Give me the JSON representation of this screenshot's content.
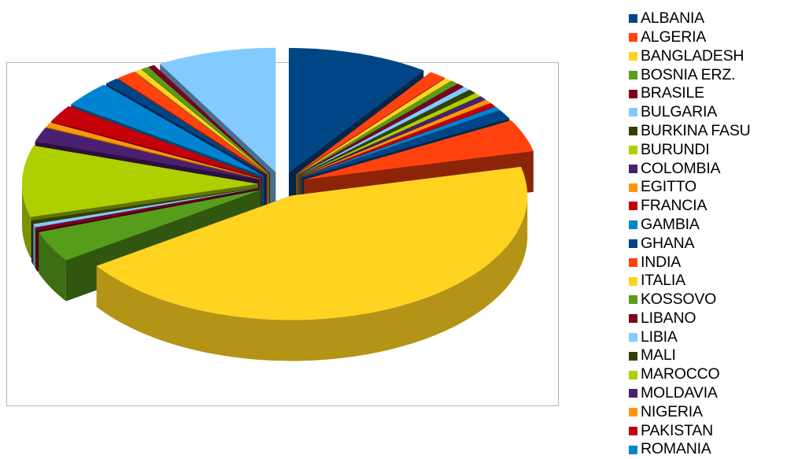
{
  "chart_data": {
    "type": "pie",
    "style": "3d-exploded",
    "title": "",
    "legend_position": "right",
    "slices": [
      {
        "label": "ALBANIA",
        "value": 11.5,
        "color": "#004586"
      },
      {
        "label": "ALGERIA",
        "value": 1.4,
        "color": "#ff420e"
      },
      {
        "label": "BANGLADESH",
        "value": 0.6,
        "color": "#ffd320"
      },
      {
        "label": "BOSNIA ERZ.",
        "value": 0.6,
        "color": "#579d1c"
      },
      {
        "label": "BRASILE",
        "value": 0.6,
        "color": "#7e0021"
      },
      {
        "label": "BULGARIA",
        "value": 0.6,
        "color": "#83caff"
      },
      {
        "label": "BURKINA FASU",
        "value": 0.6,
        "color": "#314004"
      },
      {
        "label": "BURUNDI",
        "value": 0.6,
        "color": "#aecf00"
      },
      {
        "label": "COLOMBIA",
        "value": 0.6,
        "color": "#4b1f6f"
      },
      {
        "label": "EGITTO",
        "value": 0.6,
        "color": "#ff950e"
      },
      {
        "label": "FRANCIA",
        "value": 0.6,
        "color": "#c5000b"
      },
      {
        "label": "GAMBIA",
        "value": 0.6,
        "color": "#0084d1"
      },
      {
        "label": "GHANA",
        "value": 1.4,
        "color": "#004586"
      },
      {
        "label": "INDIA",
        "value": 5.0,
        "color": "#ff420e"
      },
      {
        "label": "ITALIA",
        "value": 52.5,
        "color": "#ffd320"
      },
      {
        "label": "KOSSOVO",
        "value": 4.8,
        "color": "#579d1c"
      },
      {
        "label": "LIBANO",
        "value": 0.5,
        "color": "#7e0021"
      },
      {
        "label": "LIBIA",
        "value": 0.5,
        "color": "#83caff"
      },
      {
        "label": "MALI",
        "value": 0.5,
        "color": "#314004"
      },
      {
        "label": "MAROCCO",
        "value": 11.0,
        "color": "#aecf00"
      },
      {
        "label": "MOLDAVIA",
        "value": 2.2,
        "color": "#4b1f6f"
      },
      {
        "label": "NIGERIA",
        "value": 0.8,
        "color": "#ff950e"
      },
      {
        "label": "PAKISTAN",
        "value": 2.7,
        "color": "#c5000b"
      },
      {
        "label": "ROMANIA",
        "value": 4.0,
        "color": "#0084d1"
      },
      {
        "label": "",
        "value": 1.1,
        "color": "#004586"
      },
      {
        "label": "",
        "value": 1.6,
        "color": "#ff420e"
      },
      {
        "label": "",
        "value": 0.6,
        "color": "#ffd320"
      },
      {
        "label": "",
        "value": 0.6,
        "color": "#579d1c"
      },
      {
        "label": "",
        "value": 0.5,
        "color": "#7e0021"
      },
      {
        "label": "",
        "value": 9.7,
        "color": "#83caff"
      }
    ]
  }
}
